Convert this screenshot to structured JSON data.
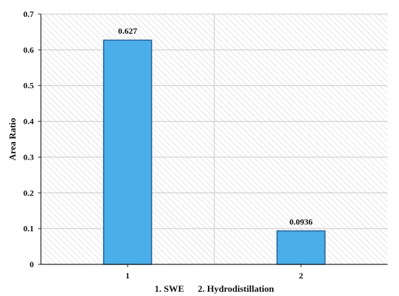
{
  "chart_data": {
    "type": "bar",
    "categories": [
      "1",
      "2"
    ],
    "values": [
      0.627,
      0.0936
    ],
    "data_labels": [
      "0.627",
      "0.0936"
    ],
    "title": "",
    "xlabel": "1. SWE      2. Hydrodistillation",
    "ylabel": "Area Ratio",
    "ylim": [
      0,
      0.7
    ],
    "yticks": [
      "0",
      "0.1",
      "0.2",
      "0.3",
      "0.4",
      "0.5",
      "0.6",
      "0.7"
    ],
    "grid": true,
    "legend": "none",
    "colors": {
      "bar_fill": "#4aaee8",
      "bar_stroke": "#1f5f9a",
      "grid": "#c8c8c8",
      "hatch": "#cfcfcf",
      "axis": "#222222"
    }
  }
}
